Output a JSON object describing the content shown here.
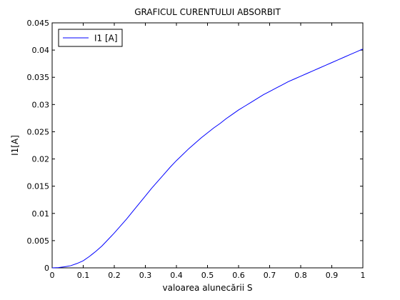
{
  "chart_data": {
    "type": "line",
    "title": "GRAFICUL CURENTULUI ABSORBIT",
    "xlabel": "valoarea alunecării S",
    "ylabel": "I1[A]",
    "xlim": [
      0,
      1
    ],
    "ylim": [
      0,
      0.045
    ],
    "x_ticks": [
      "0",
      "0.1",
      "0.2",
      "0.3",
      "0.4",
      "0.5",
      "0.6",
      "0.7",
      "0.8",
      "0.9",
      "1"
    ],
    "y_ticks": [
      "0",
      "0.005",
      "0.01",
      "0.015",
      "0.02",
      "0.025",
      "0.03",
      "0.035",
      "0.04",
      "0.045"
    ],
    "grid": false,
    "legend_position": "top-left",
    "series": [
      {
        "name": "I1 [A]",
        "color": "#0000ff",
        "x": [
          0,
          0.02,
          0.04,
          0.06,
          0.08,
          0.1,
          0.12,
          0.14,
          0.16,
          0.18,
          0.2,
          0.22,
          0.24,
          0.26,
          0.28,
          0.3,
          0.32,
          0.34,
          0.36,
          0.38,
          0.4,
          0.42,
          0.44,
          0.46,
          0.48,
          0.5,
          0.52,
          0.54,
          0.56,
          0.58,
          0.6,
          0.62,
          0.64,
          0.66,
          0.68,
          0.7,
          0.72,
          0.74,
          0.76,
          0.78,
          0.8,
          0.82,
          0.84,
          0.86,
          0.88,
          0.9,
          0.92,
          0.94,
          0.96,
          0.98,
          1.0
        ],
        "y": [
          0,
          5e-05,
          0.0002,
          0.0004,
          0.0008,
          0.0013,
          0.0021,
          0.003,
          0.004,
          0.0052,
          0.0064,
          0.0077,
          0.009,
          0.0104,
          0.0118,
          0.0132,
          0.0146,
          0.0159,
          0.0172,
          0.0185,
          0.0197,
          0.0208,
          0.0219,
          0.0229,
          0.0239,
          0.0248,
          0.0257,
          0.0265,
          0.0274,
          0.0282,
          0.029,
          0.0297,
          0.0304,
          0.0311,
          0.0318,
          0.0324,
          0.033,
          0.0336,
          0.0342,
          0.0347,
          0.0352,
          0.0357,
          0.0362,
          0.0367,
          0.0372,
          0.0377,
          0.0382,
          0.0387,
          0.0392,
          0.0397,
          0.0402
        ]
      }
    ]
  }
}
